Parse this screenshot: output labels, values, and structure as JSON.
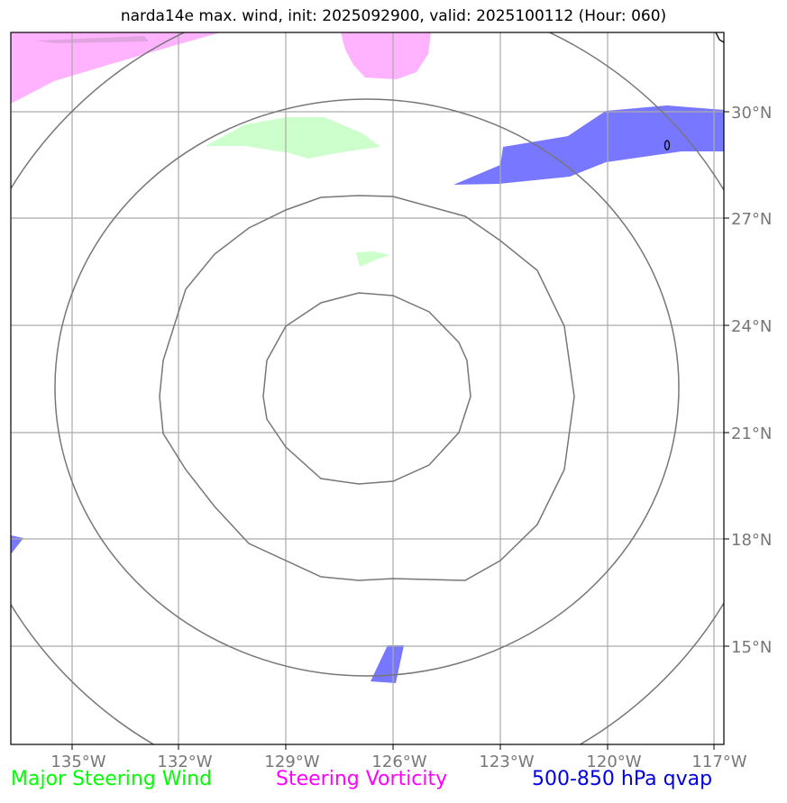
{
  "title": "narda14e max. wind, init: 2025092900, valid: 2025100112 (Hour: 060)",
  "lat_labels": [
    "30°N",
    "27°N",
    "24°N",
    "21°N",
    "18°N",
    "15°N"
  ],
  "lon_labels": [
    "135°W",
    "132°W",
    "129°W",
    "126°W",
    "123°W",
    "120°W",
    "117°W"
  ],
  "legend": {
    "wind": "Major Steering Wind",
    "vorticity": "Steering Vorticity",
    "qvap": "500-850 hPa qvap"
  },
  "colors": {
    "wind": "#00ff00",
    "vorticity": "#ff00ff",
    "qvap": "#0000e0",
    "wind_fill": "#ccffcc",
    "vorticity_fill": "#ffb3ff",
    "qvap_fill": "#7777ff",
    "grid": "#aaaaaa",
    "rings": "#777777"
  }
}
